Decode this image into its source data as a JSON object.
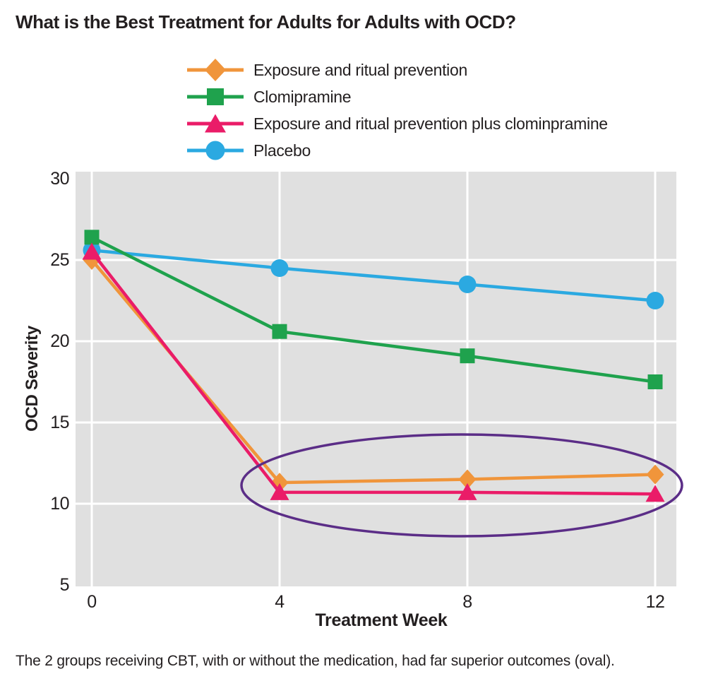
{
  "title": "What is the Best Treatment for Adults for Adults with OCD?",
  "caption": "The 2 groups receiving CBT, with or without the medication, had far superior outcomes (oval).",
  "colors": {
    "text": "#231F20",
    "plot_background": "#E0E0E0",
    "gridline": "#FFFFFF",
    "oval_annotation": "#5B2D87"
  },
  "chart_data": {
    "type": "line",
    "title": "What is the Best Treatment for Adults for Adults with OCD?",
    "xlabel": "Treatment Week",
    "ylabel": "OCD Severity",
    "x": [
      0,
      4,
      8,
      12
    ],
    "xtick_labels": [
      "0",
      "4",
      "8",
      "12"
    ],
    "ytick_labels": [
      "30",
      "25",
      "20",
      "15",
      "10",
      "5"
    ],
    "ytick_values": [
      30,
      25,
      20,
      15,
      10,
      5
    ],
    "ylim": [
      5,
      30
    ],
    "xlim": [
      0,
      12
    ],
    "grid": true,
    "legend_position": "top-center",
    "series": [
      {
        "name": "Exposure and ritual prevention",
        "marker": "diamond",
        "color": "#F0953B",
        "values": [
          25.0,
          11.3,
          11.5,
          11.8
        ]
      },
      {
        "name": "Clomipramine",
        "marker": "square",
        "color": "#1FA24D",
        "values": [
          26.4,
          20.6,
          19.1,
          17.5
        ]
      },
      {
        "name": "Exposure and ritual prevention plus clominpramine",
        "marker": "triangle",
        "color": "#EA1C68",
        "values": [
          25.5,
          10.7,
          10.7,
          10.6
        ]
      },
      {
        "name": "Placebo",
        "marker": "circle",
        "color": "#2BA9E1",
        "values": [
          25.6,
          24.5,
          23.5,
          22.5
        ]
      }
    ],
    "annotations": [
      {
        "type": "oval",
        "color": "#5B2D87",
        "covers": "CBT group lines from week 4 to week 12 (values near 10-12)"
      }
    ]
  }
}
